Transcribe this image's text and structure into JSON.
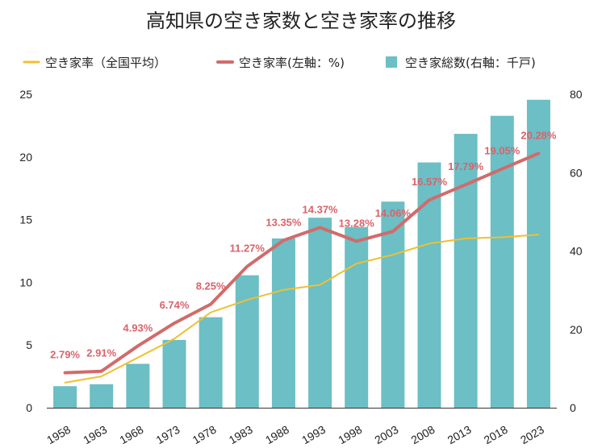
{
  "chart_data": {
    "type": "bar",
    "title": "高知県の空き家数と空き家率の推移",
    "categories": [
      "1958",
      "1963",
      "1968",
      "1973",
      "1978",
      "1983",
      "1988",
      "1993",
      "1998",
      "2003",
      "2008",
      "2013",
      "2018",
      "2023"
    ],
    "series": [
      {
        "name": "空き家総数(右軸：千戸)",
        "type": "bar",
        "axis": "right",
        "color": "#6bbfc5",
        "values": [
          5.5,
          6.0,
          11.2,
          17.3,
          23.1,
          33.8,
          43.2,
          48.5,
          46.1,
          52.6,
          62.6,
          69.9,
          74.5,
          78.6
        ]
      },
      {
        "name": "空き家率(左軸：%)",
        "type": "line",
        "axis": "left",
        "color": "#d16b6b",
        "values": [
          2.79,
          2.91,
          4.93,
          6.74,
          8.25,
          11.27,
          13.35,
          14.37,
          13.28,
          14.06,
          16.57,
          17.79,
          19.05,
          20.28
        ],
        "labels": [
          "2.79%",
          "2.91%",
          "4.93%",
          "6.74%",
          "8.25%",
          "11.27%",
          "13.35%",
          "14.37%",
          "13.28%",
          "14.06%",
          "16.57%",
          "17.79%",
          "19.05%",
          "20.28%"
        ]
      },
      {
        "name": "空き家率（全国平均）",
        "type": "line",
        "axis": "left",
        "color": "#f0c030",
        "values": [
          2.0,
          2.5,
          4.0,
          5.5,
          7.6,
          8.6,
          9.4,
          9.8,
          11.5,
          12.2,
          13.1,
          13.5,
          13.6,
          13.8
        ]
      }
    ],
    "y_left": {
      "min": 0,
      "max": 25,
      "ticks": [
        "0",
        "5",
        "10",
        "15",
        "20",
        "25"
      ]
    },
    "y_right": {
      "min": 0,
      "max": 80,
      "ticks": [
        "0",
        "20",
        "40",
        "60",
        "80"
      ]
    },
    "legend": [
      {
        "label": "空き家率（全国平均）",
        "marker": "line",
        "color": "#f0c030"
      },
      {
        "label": "空き家率(左軸：%)",
        "marker": "line",
        "color": "#d16b6b"
      },
      {
        "label": "空き家総数(右軸：千戸)",
        "marker": "square",
        "color": "#6bbfc5"
      }
    ],
    "legend_position": "top",
    "grid": false
  }
}
